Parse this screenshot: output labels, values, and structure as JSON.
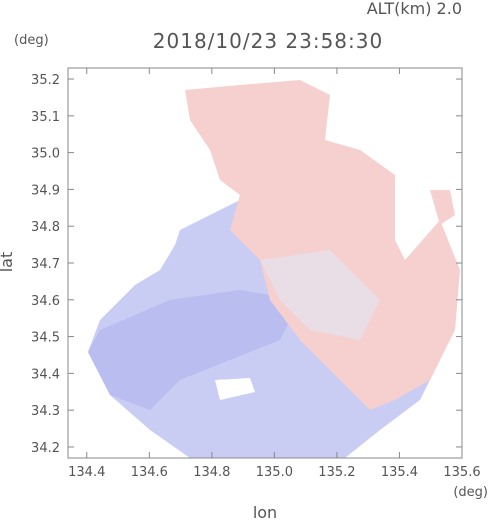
{
  "chart_data": {
    "type": "map",
    "title": "2018/10/23 23:58:30",
    "subtitle": "ALT(km) 2.0",
    "x_label": "lon",
    "x_unit": "(deg)",
    "y_label": "lat",
    "y_unit": "(deg)",
    "xlim": [
      134.34,
      135.6
    ],
    "ylim": [
      34.17,
      35.23
    ],
    "xticks": [
      134.4,
      134.6,
      134.8,
      {
        "value": 135.0,
        "label": "135.0"
      },
      135.2,
      135.4,
      135.6
    ],
    "yticks": [
      34.2,
      34.3,
      34.4,
      34.5,
      34.6,
      34.7,
      34.8,
      34.9,
      {
        "value": 35.0,
        "label": "35.0"
      },
      35.1,
      35.2
    ]
  }
}
